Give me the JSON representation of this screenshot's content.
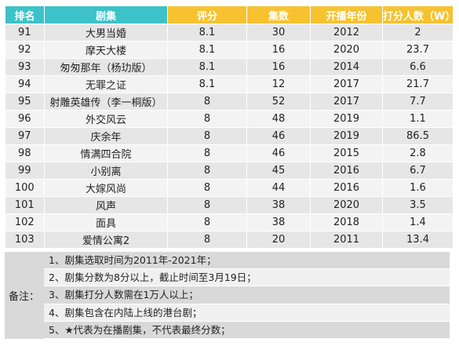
{
  "headers": {
    "rank": "排名",
    "title": "剧集",
    "score": "评分",
    "episodes": "集数",
    "year": "开播年份",
    "raters": "打分人数（W）"
  },
  "rows": [
    {
      "rank": "91",
      "title": "大男当婚",
      "score": "8.1",
      "episodes": "30",
      "year": "2012",
      "raters": "2"
    },
    {
      "rank": "92",
      "title": "摩天大楼",
      "score": "8.1",
      "episodes": "16",
      "year": "2020",
      "raters": "23.7"
    },
    {
      "rank": "93",
      "title": "匆匆那年（杨玏版）",
      "score": "8.1",
      "episodes": "16",
      "year": "2014",
      "raters": "6.6"
    },
    {
      "rank": "94",
      "title": "无罪之证",
      "score": "8.1",
      "episodes": "12",
      "year": "2017",
      "raters": "21.7"
    },
    {
      "rank": "95",
      "title": "射雕英雄传（李一桐版）",
      "score": "8",
      "episodes": "52",
      "year": "2017",
      "raters": "7.7"
    },
    {
      "rank": "96",
      "title": "外交风云",
      "score": "8",
      "episodes": "48",
      "year": "2019",
      "raters": "1.1"
    },
    {
      "rank": "97",
      "title": "庆余年",
      "score": "8",
      "episodes": "46",
      "year": "2019",
      "raters": "86.5"
    },
    {
      "rank": "98",
      "title": "情满四合院",
      "score": "8",
      "episodes": "46",
      "year": "2015",
      "raters": "2.8"
    },
    {
      "rank": "99",
      "title": "小别离",
      "score": "8",
      "episodes": "45",
      "year": "2016",
      "raters": "6.7"
    },
    {
      "rank": "100",
      "title": "大嫁风尚",
      "score": "8",
      "episodes": "44",
      "year": "2016",
      "raters": "1.6"
    },
    {
      "rank": "101",
      "title": "风声",
      "score": "8",
      "episodes": "38",
      "year": "2020",
      "raters": "3.5"
    },
    {
      "rank": "102",
      "title": "面具",
      "score": "8",
      "episodes": "38",
      "year": "2018",
      "raters": "1.4"
    },
    {
      "rank": "103",
      "title": "爱情公寓2",
      "score": "8",
      "episodes": "20",
      "year": "2011",
      "raters": "13.4"
    }
  ],
  "notes": {
    "label": "备注：",
    "lines": [
      "1、剧集选取时间为2011年-2021年；",
      "2、剧集分数为8分以上，截止时间至3月19日；",
      "3、剧集打分人数需在1万人以上；",
      "4、剧集包含在内陆上线的港台剧；",
      "5、★代表为在播剧集，不代表最终分数；"
    ]
  },
  "colors": {
    "header_teal": "#3cc2c8",
    "header_gold": "#f6c22f",
    "row_odd": "#e6e6e6",
    "row_even": "#f3f3f3",
    "notes_bg": "#d9d9d9"
  }
}
